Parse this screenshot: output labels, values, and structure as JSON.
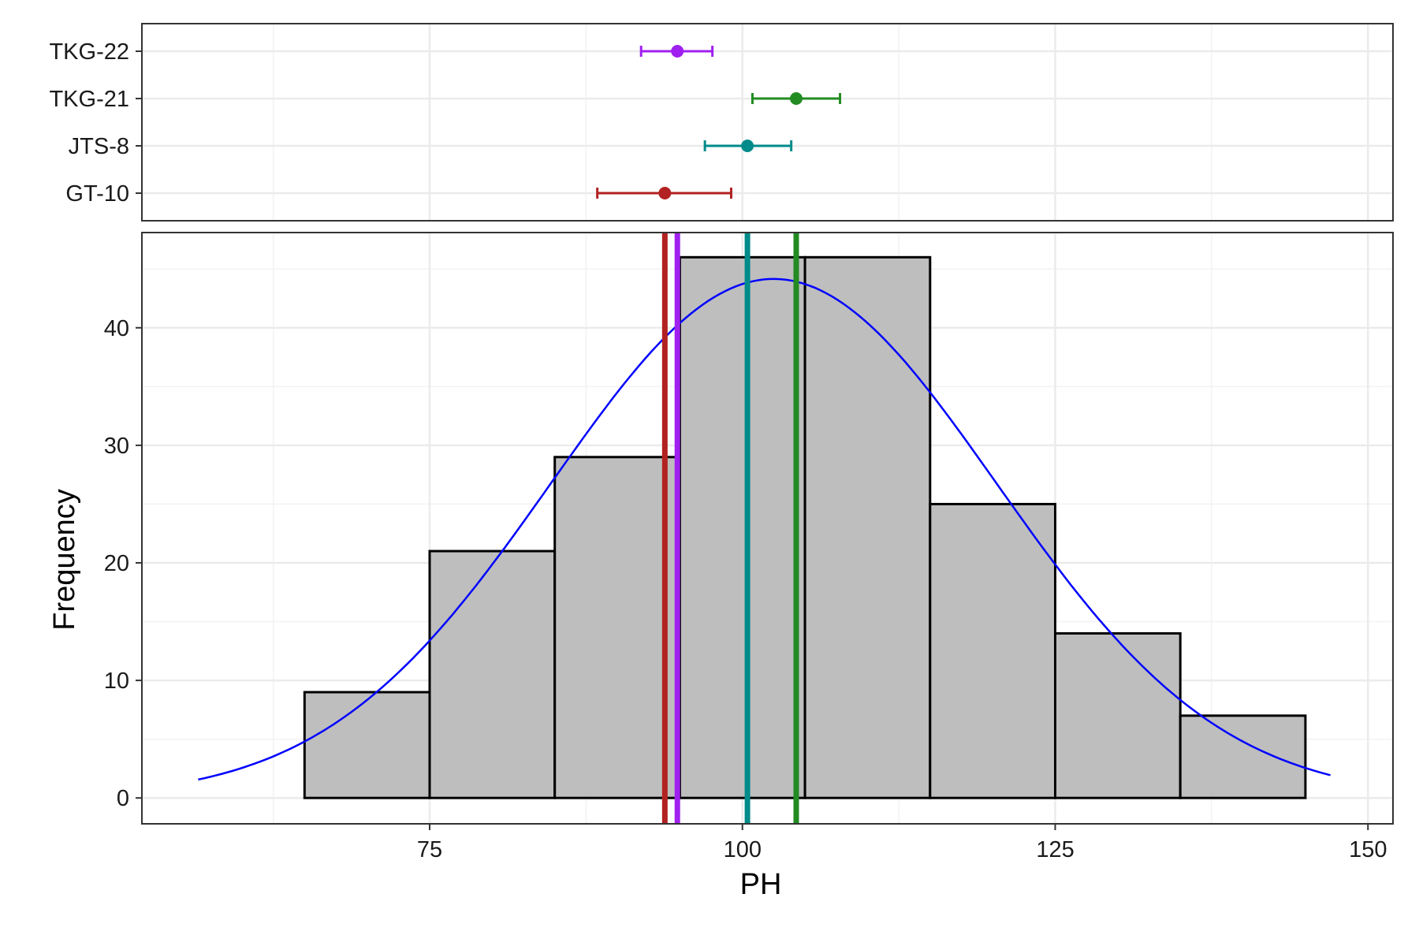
{
  "chart_data": [
    {
      "panel": "top",
      "type": "errorbar",
      "categories": [
        "GT-10",
        "JTS-8",
        "TKG-21",
        "TKG-22"
      ],
      "series": [
        {
          "name": "GT-10",
          "mean": 93.8,
          "low": 88.4,
          "high": 99.1,
          "color": "#b22222"
        },
        {
          "name": "JTS-8",
          "mean": 100.4,
          "low": 97.0,
          "high": 103.9,
          "color": "#008b8b"
        },
        {
          "name": "TKG-21",
          "mean": 104.3,
          "low": 100.8,
          "high": 107.8,
          "color": "#228b22"
        },
        {
          "name": "TKG-22",
          "mean": 94.8,
          "low": 91.9,
          "high": 97.6,
          "color": "#a020f0"
        }
      ],
      "xlim": [
        52,
        152
      ],
      "grid": true
    },
    {
      "panel": "bottom",
      "type": "bar",
      "subtype": "histogram",
      "bins": [
        {
          "start": 65,
          "end": 75,
          "count": 9
        },
        {
          "start": 75,
          "end": 85,
          "count": 21
        },
        {
          "start": 85,
          "end": 95,
          "count": 29
        },
        {
          "start": 95,
          "end": 105,
          "count": 46
        },
        {
          "start": 105,
          "end": 115,
          "count": 46
        },
        {
          "start": 115,
          "end": 125,
          "count": 25
        },
        {
          "start": 125,
          "end": 135,
          "count": 14
        },
        {
          "start": 135,
          "end": 145,
          "count": 7
        }
      ],
      "bar_color": "#bebebe",
      "density_curve": {
        "color": "#0000ff",
        "mean": 102.5,
        "sd": 17.8,
        "n": 197,
        "binwidth": 10,
        "x_range": [
          56.5,
          147
        ]
      },
      "vlines": [
        {
          "name": "GT-10",
          "x": 93.8,
          "color": "#b22222"
        },
        {
          "name": "TKG-22",
          "x": 94.8,
          "color": "#a020f0"
        },
        {
          "name": "JTS-8",
          "x": 100.4,
          "color": "#008b8b"
        },
        {
          "name": "TKG-21",
          "x": 104.3,
          "color": "#228b22"
        }
      ],
      "xlabel": "PH",
      "ylabel": "Frequency",
      "xticks": [
        75,
        100,
        125,
        150
      ],
      "yticks": [
        0,
        10,
        20,
        30,
        40
      ],
      "xlim": [
        52,
        152
      ],
      "ylim": [
        -2.2,
        48.1
      ],
      "grid": true
    }
  ]
}
